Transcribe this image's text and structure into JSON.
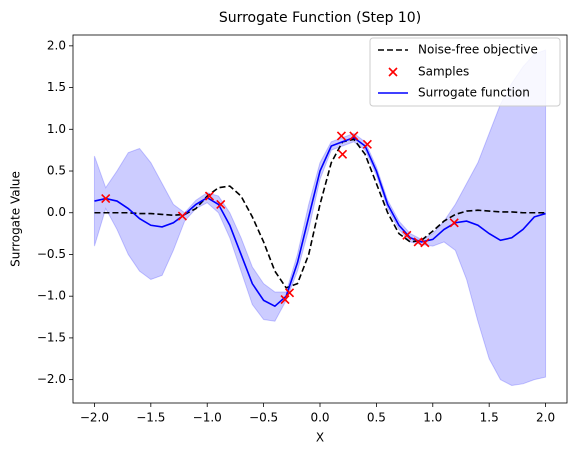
{
  "chart_data": {
    "type": "line",
    "title": "Surrogate Function (Step 10)",
    "xlabel": "X",
    "ylabel": "Surrogate Value",
    "x": [
      -2.0,
      -1.9,
      -1.8,
      -1.7,
      -1.6,
      -1.5,
      -1.4,
      -1.3,
      -1.2,
      -1.1,
      -1.0,
      -0.9,
      -0.8,
      -0.7,
      -0.6,
      -0.5,
      -0.4,
      -0.3,
      -0.2,
      -0.1,
      0.0,
      0.1,
      0.2,
      0.3,
      0.4,
      0.5,
      0.6,
      0.7,
      0.8,
      0.9,
      1.0,
      1.1,
      1.2,
      1.3,
      1.4,
      1.5,
      1.6,
      1.7,
      1.8,
      1.9,
      2.0
    ],
    "series": [
      {
        "name": "Noise-free objective",
        "color": "#000000",
        "dashed": true,
        "values": [
          0,
          0,
          0,
          0,
          -0.01,
          -0.01,
          -0.02,
          -0.03,
          -0.02,
          0.05,
          0.2,
          0.3,
          0.32,
          0.2,
          -0.05,
          -0.35,
          -0.7,
          -0.9,
          -0.85,
          -0.5,
          0.1,
          0.6,
          0.85,
          0.88,
          0.7,
          0.35,
          0,
          -0.25,
          -0.35,
          -0.33,
          -0.22,
          -0.1,
          -0.02,
          0.02,
          0.03,
          0.02,
          0.01,
          0.01,
          0,
          0,
          0
        ]
      },
      {
        "name": "Surrogate function",
        "color": "#0000ff",
        "dashed": false,
        "values": [
          0.14,
          0.17,
          0.14,
          0.05,
          -0.07,
          -0.15,
          -0.17,
          -0.12,
          -0.02,
          0.1,
          0.18,
          0.1,
          -0.15,
          -0.5,
          -0.85,
          -1.05,
          -1.12,
          -1.0,
          -0.6,
          -0.05,
          0.5,
          0.8,
          0.85,
          0.9,
          0.8,
          0.5,
          0.1,
          -0.15,
          -0.3,
          -0.35,
          -0.32,
          -0.2,
          -0.12,
          -0.1,
          -0.15,
          -0.25,
          -0.33,
          -0.3,
          -0.2,
          -0.05,
          -0.01
        ]
      }
    ],
    "band": {
      "color": "#0000ff",
      "upper": [
        0.68,
        0.3,
        0.5,
        0.72,
        0.77,
        0.6,
        0.35,
        0.1,
        0.0,
        0.15,
        0.24,
        0.2,
        0.0,
        -0.3,
        -0.65,
        -0.85,
        -0.95,
        -0.95,
        -0.5,
        0.1,
        0.6,
        0.85,
        0.9,
        0.95,
        0.85,
        0.55,
        0.15,
        -0.1,
        -0.25,
        -0.32,
        -0.25,
        -0.1,
        0.1,
        0.35,
        0.6,
        0.95,
        1.3,
        1.55,
        1.75,
        1.9,
        1.95
      ],
      "lower": [
        -0.4,
        0.05,
        -0.2,
        -0.5,
        -0.7,
        -0.8,
        -0.75,
        -0.45,
        -0.1,
        0.05,
        0.12,
        0.0,
        -0.3,
        -0.7,
        -1.1,
        -1.28,
        -1.3,
        -1.05,
        -0.7,
        -0.2,
        0.4,
        0.75,
        0.8,
        0.85,
        0.75,
        0.45,
        0.05,
        -0.2,
        -0.35,
        -0.38,
        -0.4,
        -0.35,
        -0.45,
        -0.8,
        -1.3,
        -1.75,
        -2.0,
        -2.07,
        -2.05,
        -2.0,
        -1.97
      ]
    },
    "samples": {
      "name": "Samples",
      "color": "#ff0000",
      "x": [
        -1.9,
        -1.22,
        -0.98,
        -0.88,
        -0.31,
        -0.27,
        0.19,
        0.2,
        0.3,
        0.42,
        0.77,
        0.87,
        0.93,
        1.19
      ],
      "y": [
        0.17,
        -0.04,
        0.2,
        0.1,
        -1.04,
        -0.96,
        0.92,
        0.7,
        0.92,
        0.82,
        -0.27,
        -0.35,
        -0.36,
        -0.12
      ]
    },
    "xlim": [
      -2.19,
      2.19
    ],
    "ylim": [
      -2.28,
      2.13
    ],
    "xticks": [
      {
        "value": -2.0,
        "label": "−2.0"
      },
      {
        "value": -1.5,
        "label": "−1.5"
      },
      {
        "value": -1.0,
        "label": "−1.0"
      },
      {
        "value": -0.5,
        "label": "−0.5"
      },
      {
        "value": 0.0,
        "label": "0.0"
      },
      {
        "value": 0.5,
        "label": "0.5"
      },
      {
        "value": 1.0,
        "label": "1.0"
      },
      {
        "value": 1.5,
        "label": "1.5"
      },
      {
        "value": 2.0,
        "label": "2.0"
      }
    ],
    "yticks": [
      {
        "value": -2.0,
        "label": "−2.0"
      },
      {
        "value": -1.5,
        "label": "−1.5"
      },
      {
        "value": -1.0,
        "label": "−1.0"
      },
      {
        "value": -0.5,
        "label": "−0.5"
      },
      {
        "value": 0.0,
        "label": "0.0"
      },
      {
        "value": 0.5,
        "label": "0.5"
      },
      {
        "value": 1.0,
        "label": "1.0"
      },
      {
        "value": 1.5,
        "label": "1.5"
      },
      {
        "value": 2.0,
        "label": "2.0"
      }
    ],
    "legend": "upper right"
  }
}
